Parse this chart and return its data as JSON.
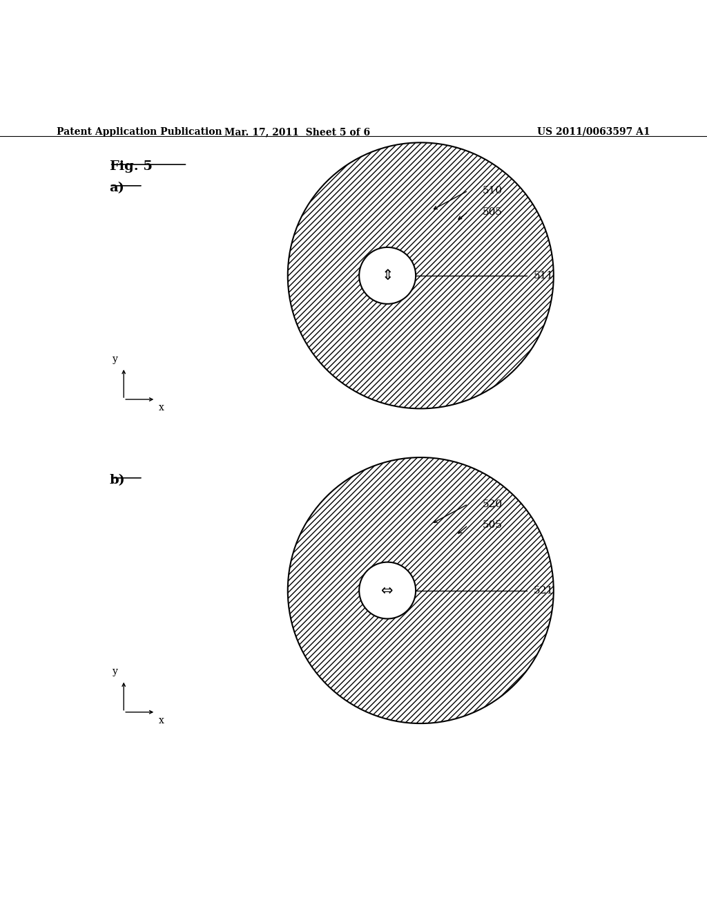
{
  "bg_color": "#ffffff",
  "header_left": "Patent Application Publication",
  "header_mid": "Mar. 17, 2011  Sheet 5 of 6",
  "header_right": "US 2011/0063597 A1",
  "fig_label": "Fig. 5",
  "sub_a_label": "a)",
  "sub_b_label": "b)",
  "fontsize_header": 10,
  "fontsize_numbers": 11,
  "fontsize_fig": 14,
  "fontsize_sub": 14
}
